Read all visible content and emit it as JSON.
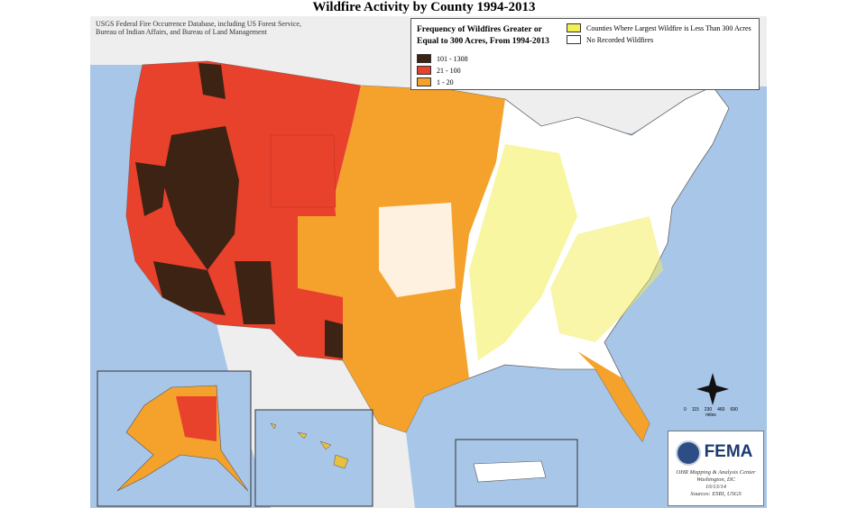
{
  "title": "Wildfire Activity by County 1994-2013",
  "source": "USGS Federal Fire Occurrence Database, including US Forest Service, Bureau of Indian Affairs, and Bureau of Land Management",
  "legend": {
    "title": "Frequency of Wildfires Greater or Equal to 300 Acres, From 1994-2013",
    "items": [
      {
        "label": "101 - 1308",
        "color": "#3d2314"
      },
      {
        "label": "21 - 100",
        "color": "#e8412c"
      },
      {
        "label": "1 - 20",
        "color": "#f4a22c"
      }
    ],
    "extra": [
      {
        "label": "Counties Where Largest Wildfire is Less Than 300 Acres",
        "color": "#f3ee54"
      },
      {
        "label": "No Recorded Wildfires",
        "color": "#ffffff"
      }
    ]
  },
  "scale": {
    "ticks": [
      "0",
      "115",
      "230",
      "460",
      "690"
    ],
    "unit": "miles"
  },
  "credits": {
    "logo": "FEMA",
    "lines": [
      "OHR Mapping & Analysis Center",
      "Washington, DC",
      "10/13/14",
      "Sources: ESRI, USGS"
    ]
  }
}
